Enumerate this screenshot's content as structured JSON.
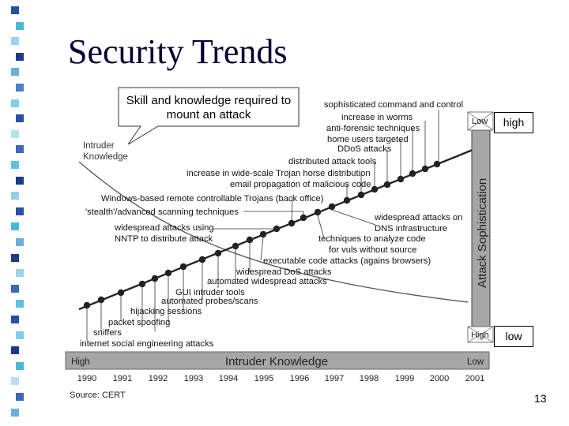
{
  "slide": {
    "title": "Security Trends",
    "callout": "Skill and knowledge required to mount an attack",
    "page_number": "13"
  },
  "side_boxes": {
    "top": "high",
    "bottom": "low"
  },
  "diagram": {
    "left_axis_label_line1": "Intruder",
    "left_axis_label_line2": "Knowledge",
    "right_axis_label": "Attack Sophistication",
    "right_axis_top": "Low",
    "right_axis_bottom": "High",
    "bottom_bar_label": "Intruder Knowledge",
    "bottom_bar_left": "High",
    "bottom_bar_right": "Low",
    "years": [
      "1990",
      "1991",
      "1992",
      "1993",
      "1994",
      "1995",
      "1996",
      "1997",
      "1998",
      "1999",
      "2000",
      "2001"
    ],
    "source": "Source: CERT",
    "attacks": [
      "sophisticated command and control",
      "increase in worms",
      "anti-forensic techniques",
      "home users targeted",
      "DDoS attacks",
      "distributed attack tools",
      "increase in wide-scale Trojan horse distribution",
      "email propagation of malicious code",
      "Windows-based remote controllable Trojans (back office)",
      "'stealth'/advanced scanning techniques",
      "widespread attacks using",
      "NNTP to distribute attack",
      "widespread attacks on",
      "DNS infrastructure",
      "techniques to analyze code",
      "for vuls without source",
      "executable code attacks (agains browsers)",
      "widespread DoS attacks",
      "automated widespread attacks",
      "GUI intruder tools",
      "automated probes/scans",
      "hijacking sessions",
      "packet spoofing",
      "sniffers",
      "internet social engineering attacks"
    ]
  },
  "colors": {
    "bullet_colors": [
      "#2a4fa8",
      "#49b8d8",
      "#9fd3ea",
      "#1e3a8a",
      "#6ab0de",
      "#4a7fc9",
      "#7ed0e8",
      "#2a4fa8",
      "#b7e1f1",
      "#3b68b8",
      "#5cc2e0",
      "#1e3a8a",
      "#8fd0ec",
      "#2a4fa8",
      "#49b8d8",
      "#6ab0de",
      "#1e3a8a",
      "#9fd3ea",
      "#3b68b8",
      "#5cc2e0",
      "#2a4fa8",
      "#7ed0e8",
      "#1e3a8a",
      "#49b8d8",
      "#b7e1f1",
      "#3b68b8",
      "#6ab0de"
    ]
  }
}
